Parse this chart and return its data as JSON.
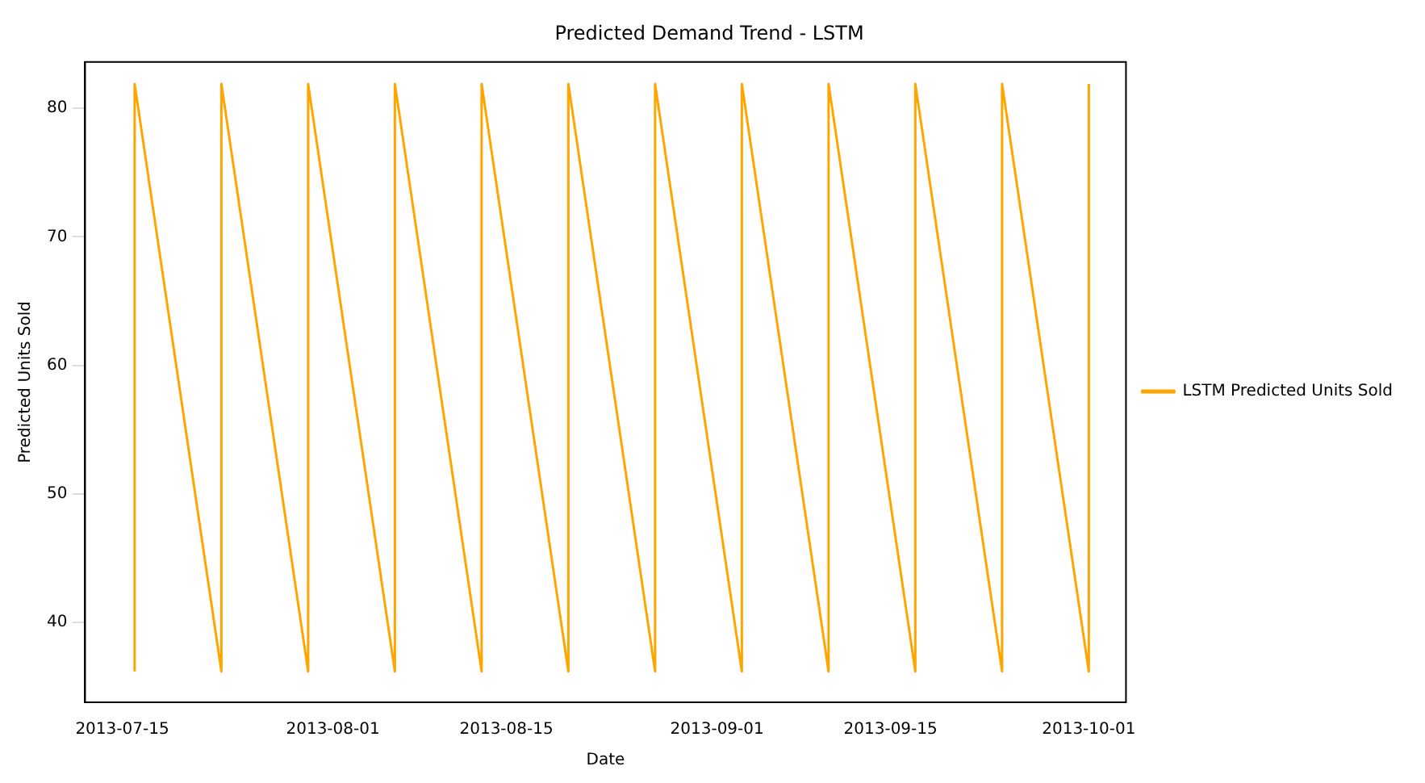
{
  "chart_data": {
    "type": "line",
    "title": "Predicted Demand Trend - LSTM",
    "xlabel": "Date",
    "ylabel": "Predicted Units Sold",
    "x": [
      "2013-07-16",
      "2013-07-16",
      "2013-07-23",
      "2013-07-23",
      "2013-07-30",
      "2013-07-30",
      "2013-08-06",
      "2013-08-06",
      "2013-08-13",
      "2013-08-13",
      "2013-08-20",
      "2013-08-20",
      "2013-08-27",
      "2013-08-27",
      "2013-09-03",
      "2013-09-03",
      "2013-09-10",
      "2013-09-10",
      "2013-09-17",
      "2013-09-17",
      "2013-09-24",
      "2013-09-24",
      "2013-10-01",
      "2013-10-01"
    ],
    "series": [
      {
        "name": "LSTM Predicted Units Sold",
        "color": "#ffa500",
        "values": [
          36.2,
          81.9,
          36.2,
          81.9,
          36.2,
          81.9,
          36.2,
          81.9,
          36.2,
          81.9,
          36.2,
          81.9,
          36.2,
          81.9,
          36.2,
          81.9,
          36.2,
          81.9,
          36.2,
          81.9,
          36.2,
          81.9,
          36.2,
          81.9
        ]
      }
    ],
    "xlim": [
      "2013-07-12",
      "2013-10-04"
    ],
    "xticks": [
      "2013-07-15",
      "2013-08-01",
      "2013-08-15",
      "2013-09-01",
      "2013-09-15",
      "2013-10-01"
    ],
    "ylim": [
      33.8,
      83.6
    ],
    "yticks": [
      40,
      50,
      60,
      70,
      80
    ],
    "legend": "right",
    "marker": "none",
    "line_style": "solid",
    "grid": false
  }
}
